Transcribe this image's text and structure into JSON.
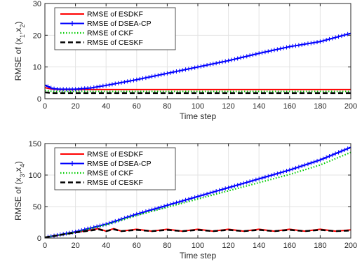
{
  "chart_data": [
    {
      "type": "line",
      "xlabel": "Time step",
      "ylabel_main": "RMSE of (x",
      "ylabel_sub1": "1",
      "ylabel_sep": ",x",
      "ylabel_sub2": "2",
      "ylabel_close": ")",
      "xlim": [
        0,
        200
      ],
      "ylim": [
        0,
        30
      ],
      "xticks": [
        0,
        20,
        40,
        60,
        80,
        100,
        120,
        140,
        160,
        180,
        200
      ],
      "yticks": [
        0,
        10,
        20,
        30
      ],
      "grid": true,
      "legend_position": "top-left",
      "series": [
        {
          "name": "RMSE of ESDKF",
          "color": "#ff0000",
          "style": "solid",
          "x": [
            0,
            5,
            10,
            20,
            40,
            60,
            80,
            100,
            120,
            140,
            160,
            180,
            200
          ],
          "y": [
            3.5,
            3.0,
            2.9,
            2.9,
            2.9,
            2.9,
            2.9,
            2.9,
            2.9,
            2.9,
            2.9,
            2.9,
            2.9
          ]
        },
        {
          "name": "RMSE of DSEA-CP",
          "color": "#0000ff",
          "style": "solid-plus",
          "x": [
            0,
            5,
            10,
            20,
            30,
            40,
            60,
            80,
            100,
            120,
            140,
            160,
            180,
            200
          ],
          "y": [
            4.3,
            3.2,
            3.0,
            3.0,
            3.4,
            4.2,
            6.0,
            8.0,
            10.0,
            12.0,
            14.3,
            16.4,
            18.0,
            20.6
          ]
        },
        {
          "name": "RMSE of CKF",
          "color": "#00cc00",
          "style": "dotted",
          "x": [
            0,
            5,
            10,
            20,
            40,
            60,
            80,
            100,
            120,
            140,
            160,
            180,
            200
          ],
          "y": [
            2.6,
            2.3,
            2.3,
            2.3,
            2.3,
            2.3,
            2.3,
            2.3,
            2.3,
            2.3,
            2.3,
            2.3,
            2.3
          ]
        },
        {
          "name": "RMSE of CESKF",
          "color": "#000000",
          "style": "dashed",
          "x": [
            0,
            5,
            10,
            20,
            40,
            60,
            80,
            100,
            120,
            140,
            160,
            180,
            200
          ],
          "y": [
            2.0,
            1.8,
            1.8,
            1.8,
            1.8,
            1.8,
            1.8,
            1.8,
            1.8,
            1.8,
            1.8,
            1.8,
            1.8
          ]
        }
      ]
    },
    {
      "type": "line",
      "xlabel": "Time step",
      "ylabel_main": "RMSE of (x",
      "ylabel_sub1": "3",
      "ylabel_sep": ",x",
      "ylabel_sub2": "4",
      "ylabel_close": ")",
      "xlim": [
        0,
        200
      ],
      "ylim": [
        0,
        150
      ],
      "xticks": [
        0,
        20,
        40,
        60,
        80,
        100,
        120,
        140,
        160,
        180,
        200
      ],
      "yticks": [
        0,
        50,
        100,
        150
      ],
      "grid": true,
      "legend_position": "top-left",
      "series": [
        {
          "name": "RMSE of ESDKF",
          "color": "#ff0000",
          "style": "solid",
          "x": [
            0,
            10,
            20,
            30,
            35,
            40,
            45,
            50,
            60,
            70,
            80,
            90,
            100,
            110,
            120,
            130,
            140,
            150,
            160,
            170,
            180,
            190,
            200
          ],
          "y": [
            1,
            5,
            9,
            13,
            15,
            11,
            15,
            11,
            14,
            11,
            14,
            11,
            14,
            11,
            14,
            11,
            14,
            11,
            14,
            11,
            14,
            11,
            13
          ]
        },
        {
          "name": "RMSE of DSEA-CP",
          "color": "#0000ff",
          "style": "solid-plus",
          "x": [
            0,
            20,
            40,
            60,
            80,
            100,
            120,
            140,
            160,
            180,
            200
          ],
          "y": [
            1,
            10,
            22,
            38,
            52,
            66,
            80,
            94,
            108,
            124,
            144
          ]
        },
        {
          "name": "RMSE of CKF",
          "color": "#00cc00",
          "style": "dotted",
          "x": [
            0,
            20,
            40,
            60,
            80,
            100,
            120,
            140,
            160,
            180,
            200
          ],
          "y": [
            1,
            9,
            21,
            36,
            49,
            62,
            75,
            88,
            101,
            116,
            136
          ]
        },
        {
          "name": "RMSE of CESKF",
          "color": "#000000",
          "style": "dashed",
          "x": [
            0,
            10,
            20,
            30,
            35,
            40,
            45,
            50,
            60,
            70,
            80,
            90,
            100,
            110,
            120,
            130,
            140,
            150,
            160,
            170,
            180,
            190,
            200
          ],
          "y": [
            1,
            5,
            9,
            12,
            14,
            11,
            14,
            11,
            13,
            11,
            13,
            11,
            13,
            11,
            13,
            11,
            13,
            11,
            13,
            11,
            13,
            11,
            12
          ]
        }
      ]
    }
  ]
}
